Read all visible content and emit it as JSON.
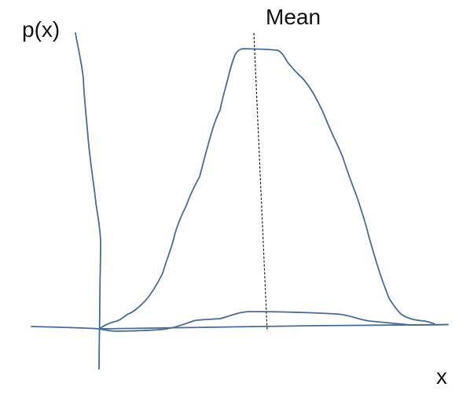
{
  "labels": {
    "y_axis": "p(x)",
    "x_axis": "x",
    "mean": "Mean"
  },
  "colors": {
    "curve": "#4a6b94",
    "axis": "#4a6b94",
    "mean_line": "#222222",
    "text": "#111111"
  }
}
